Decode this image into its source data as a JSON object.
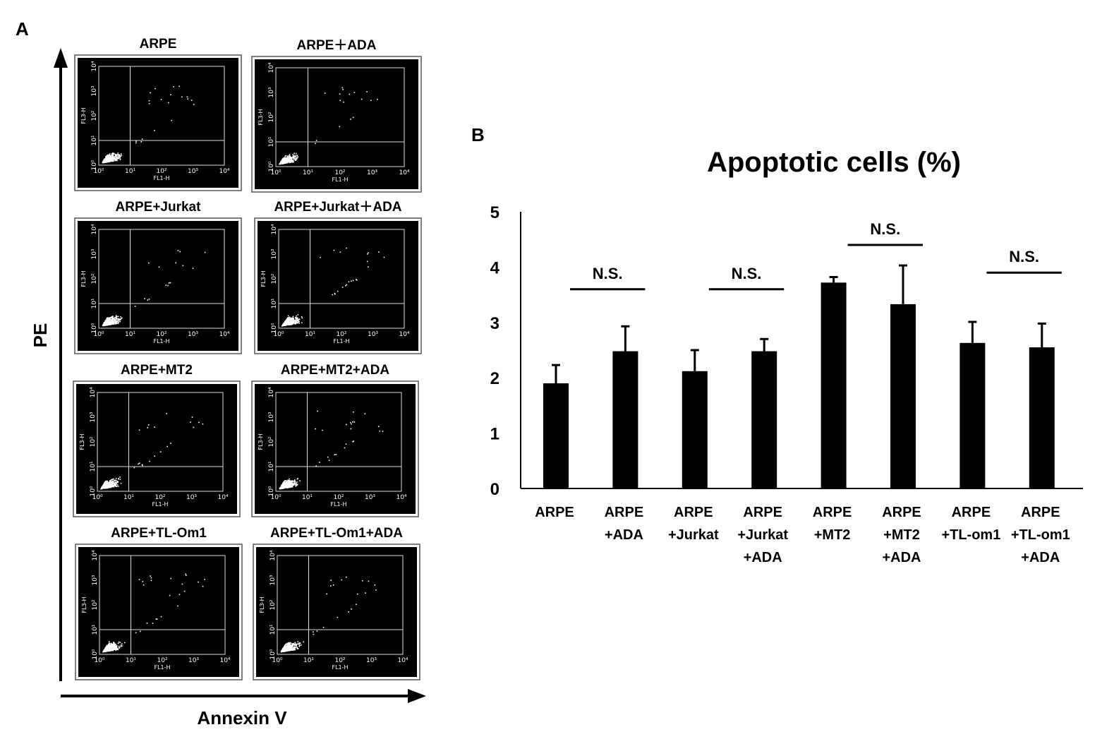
{
  "panel_a": {
    "letter": "A",
    "y_axis_label": "PE",
    "x_axis_label": "Annexin V",
    "plot_x_channel": "FL1-H",
    "plot_y_channel": "FL3-H",
    "plot_ticks": [
      "10⁰",
      "10¹",
      "10²",
      "10³",
      "10⁴"
    ],
    "plots": [
      {
        "title": "ARPE"
      },
      {
        "title": "ARPE＋ADA"
      },
      {
        "title": "ARPE+Jurkat"
      },
      {
        "title": "ARPE+Jurkat＋ADA"
      },
      {
        "title": "ARPE+MT2"
      },
      {
        "title": "ARPE+MT2+ADA"
      },
      {
        "title": "ARPE+TL-Om1"
      },
      {
        "title": "ARPE+TL-Om1+ADA"
      }
    ]
  },
  "panel_b": {
    "letter": "B",
    "colors": {
      "bar": "#000000",
      "axis": "#000000"
    },
    "chart_data": {
      "type": "bar",
      "title": "Apoptotic cells (%)",
      "xlabel": "",
      "ylabel": "",
      "ylim": [
        0,
        5
      ],
      "yticks": [
        0,
        1,
        2,
        3,
        4,
        5
      ],
      "grid": false,
      "categories": [
        [
          "ARPE"
        ],
        [
          "ARPE",
          "+ADA"
        ],
        [
          "ARPE",
          "+Jurkat"
        ],
        [
          "ARPE",
          "+Jurkat",
          "+ADA"
        ],
        [
          "ARPE",
          "+MT2"
        ],
        [
          "ARPE",
          "+MT2",
          "+ADA"
        ],
        [
          "ARPE",
          "+TL-om1"
        ],
        [
          "ARPE",
          "+TL-om1",
          "+ADA"
        ]
      ],
      "values": [
        1.9,
        2.48,
        2.12,
        2.48,
        3.72,
        3.33,
        2.63,
        2.55
      ],
      "errors": [
        0.33,
        0.45,
        0.38,
        0.22,
        0.1,
        0.7,
        0.38,
        0.43
      ],
      "annotations": [
        {
          "text": "N.S.",
          "from": 0,
          "to": 1,
          "y": 3.6
        },
        {
          "text": "N.S.",
          "from": 2,
          "to": 3,
          "y": 3.6
        },
        {
          "text": "N.S.",
          "from": 4,
          "to": 5,
          "y": 4.4
        },
        {
          "text": "N.S.",
          "from": 6,
          "to": 7,
          "y": 3.9
        }
      ]
    }
  }
}
